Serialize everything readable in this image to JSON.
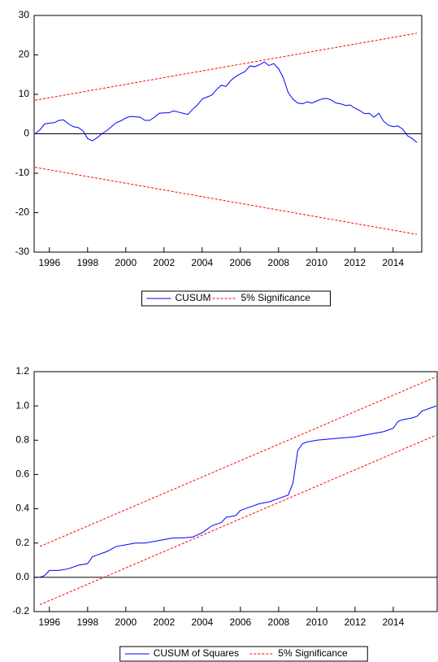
{
  "chart_data": [
    {
      "type": "line",
      "xlim": [
        1995.2,
        2015.5
      ],
      "xticks": [
        1996,
        1998,
        2000,
        2002,
        2004,
        2006,
        2008,
        2010,
        2012,
        2014
      ],
      "ylim": [
        -30,
        30
      ],
      "yticks": [
        -30,
        -20,
        -10,
        0,
        10,
        20,
        30
      ],
      "legend": "bottom",
      "series": [
        {
          "name": "CUSUM",
          "color": "#0000ff",
          "style": "solid",
          "x": [
            1995.25,
            1995.5,
            1995.75,
            1996,
            1996.25,
            1996.5,
            1996.75,
            1997,
            1997.25,
            1997.5,
            1997.75,
            1998,
            1998.25,
            1998.5,
            1998.75,
            1999,
            1999.25,
            1999.5,
            1999.75,
            2000,
            2000.25,
            2000.5,
            2000.75,
            2001,
            2001.25,
            2001.5,
            2001.75,
            2002,
            2002.25,
            2002.5,
            2002.75,
            2003,
            2003.25,
            2003.5,
            2003.75,
            2004,
            2004.25,
            2004.5,
            2004.75,
            2005,
            2005.25,
            2005.5,
            2005.75,
            2006,
            2006.25,
            2006.5,
            2006.75,
            2007,
            2007.25,
            2007.5,
            2007.75,
            2008,
            2008.25,
            2008.5,
            2008.75,
            2009,
            2009.25,
            2009.5,
            2009.75,
            2010,
            2010.25,
            2010.5,
            2010.75,
            2011,
            2011.25,
            2011.5,
            2011.75,
            2012,
            2012.25,
            2012.5,
            2012.75,
            2013,
            2013.25,
            2013.5,
            2013.75,
            2014,
            2014.25,
            2014.5,
            2014.75,
            2015,
            2015.25
          ],
          "values": [
            0,
            1,
            2.5,
            2.7,
            2.8,
            3.4,
            3.5,
            2.5,
            1.8,
            1.6,
            0.8,
            -1.2,
            -1.8,
            -1,
            0,
            0.8,
            1.8,
            2.8,
            3.3,
            4,
            4.4,
            4.3,
            4.2,
            3.4,
            3.4,
            4.2,
            5.2,
            5.3,
            5.3,
            5.8,
            5.5,
            5.2,
            4.9,
            6.2,
            7.3,
            8.8,
            9.3,
            9.8,
            11.2,
            12.3,
            12,
            13.5,
            14.5,
            15.2,
            15.8,
            17.2,
            17,
            17.5,
            18.2,
            17.3,
            17.8,
            16.5,
            14.2,
            10.5,
            8.8,
            7.8,
            7.6,
            8.1,
            7.8,
            8.3,
            8.8,
            9,
            8.6,
            7.8,
            7.6,
            7.2,
            7.3,
            6.5,
            5.9,
            5.1,
            5.2,
            4.2,
            5.2,
            3.2,
            2.2,
            1.8,
            2,
            1.2,
            -0.5,
            -1.2,
            -2.2
          ]
        },
        {
          "name": "5% Significance",
          "color": "#ff0000",
          "style": "dashed",
          "x": [
            1995.25,
            2015.25
          ],
          "values": [
            8.5,
            25.5
          ],
          "lower_values": [
            -8.5,
            -25.5
          ]
        }
      ]
    },
    {
      "type": "line",
      "xlim": [
        1995.2,
        2016.3
      ],
      "xticks": [
        1996,
        1998,
        2000,
        2002,
        2004,
        2006,
        2008,
        2010,
        2012,
        2014
      ],
      "ylim": [
        -0.2,
        1.2
      ],
      "yticks": [
        -0.2,
        {
          "value": 0,
          "label": "0.0"
        },
        0.2,
        0.4,
        0.6,
        0.8,
        {
          "value": 1,
          "label": "1.0"
        },
        1.2
      ],
      "legend": "bottom",
      "series": [
        {
          "name": "CUSUM of Squares",
          "color": "#0000ff",
          "style": "solid",
          "x": [
            1995.5,
            1995.75,
            1996,
            1996.5,
            1997,
            1997.5,
            1998,
            1998.25,
            1998.5,
            1999,
            1999.5,
            2000,
            2000.5,
            2001,
            2001.5,
            2002,
            2002.5,
            2003,
            2003.5,
            2004,
            2004.5,
            2005,
            2005.25,
            2005.75,
            2006,
            2006.5,
            2007,
            2007.5,
            2008,
            2008.5,
            2008.75,
            2009,
            2009.25,
            2009.5,
            2010,
            2011,
            2012,
            2012.5,
            2013,
            2013.5,
            2014,
            2014.25,
            2014.5,
            2015,
            2015.25,
            2015.5,
            2016,
            2016.25
          ],
          "values": [
            0,
            0.01,
            0.04,
            0.04,
            0.05,
            0.07,
            0.08,
            0.12,
            0.13,
            0.15,
            0.18,
            0.19,
            0.2,
            0.2,
            0.21,
            0.22,
            0.23,
            0.23,
            0.235,
            0.26,
            0.3,
            0.32,
            0.35,
            0.36,
            0.39,
            0.41,
            0.43,
            0.44,
            0.46,
            0.48,
            0.55,
            0.74,
            0.78,
            0.79,
            0.8,
            0.81,
            0.82,
            0.83,
            0.84,
            0.85,
            0.87,
            0.91,
            0.92,
            0.93,
            0.94,
            0.97,
            0.99,
            1
          ]
        },
        {
          "name": "5% Significance",
          "color": "#ff0000",
          "style": "dashed",
          "x": [
            1995.5,
            2016.25
          ],
          "values": [
            0.18,
            1.17
          ],
          "lower_values": [
            -0.16,
            0.83
          ]
        }
      ]
    }
  ]
}
